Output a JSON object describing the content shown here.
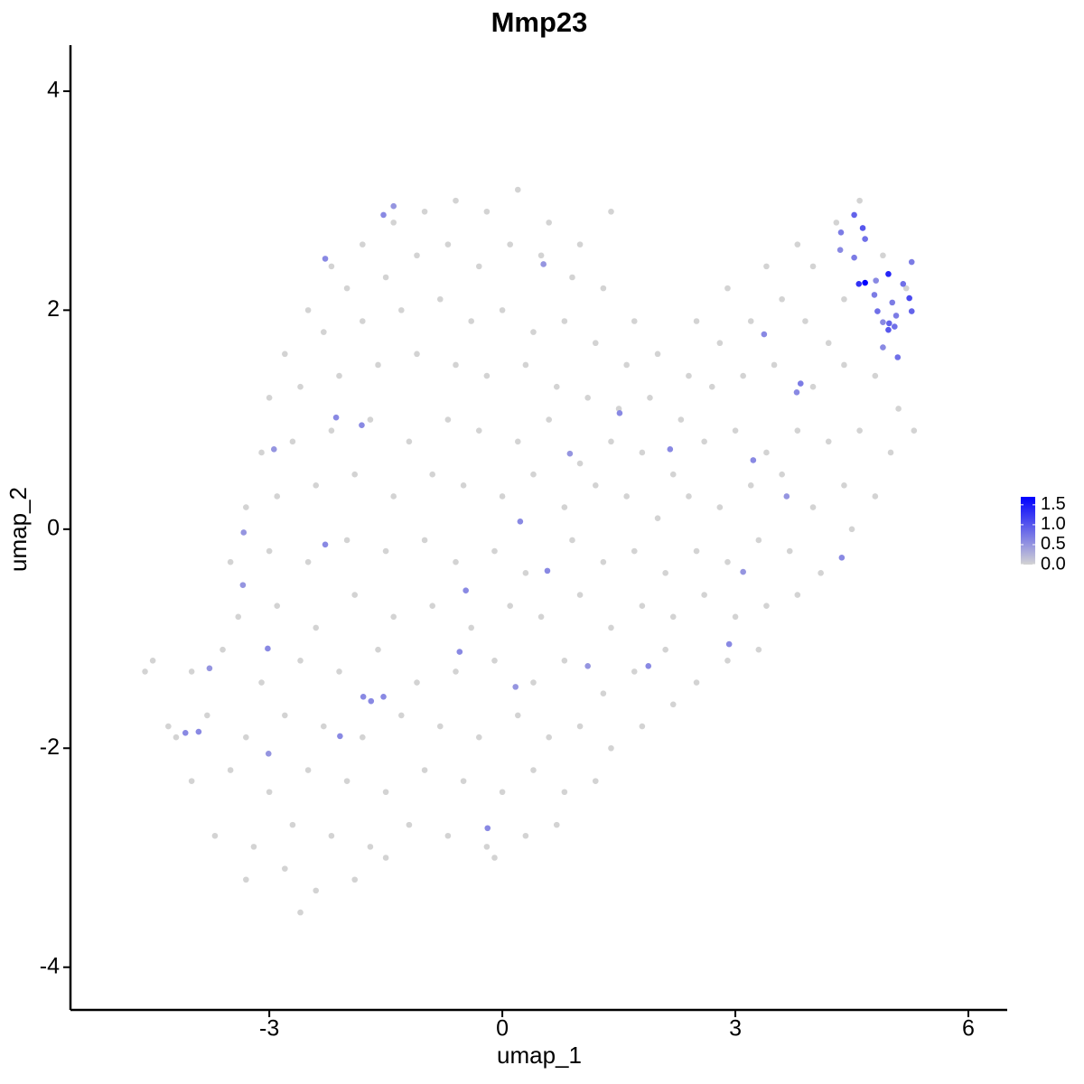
{
  "chart_data": {
    "type": "scatter",
    "title": "Mmp23",
    "x_label": "umap_1",
    "y_label": "umap_2",
    "xlim": [
      -5.56,
      6.5
    ],
    "ylim": [
      -4.39,
      4.42
    ],
    "xticks": [
      -3,
      0,
      3,
      6
    ],
    "yticks": [
      -4,
      -2,
      0,
      2,
      4
    ],
    "grid": false,
    "x": [
      -2.2,
      -1.8,
      -1.4,
      -1.0,
      -0.6,
      -0.2,
      0.2,
      0.6,
      1.0,
      1.4,
      -2.5,
      -2.0,
      -1.5,
      -1.1,
      -0.7,
      -0.3,
      0.1,
      0.5,
      0.9,
      1.3,
      1.7,
      -2.8,
      -2.3,
      -1.8,
      -1.3,
      -0.8,
      -0.4,
      0.0,
      0.4,
      0.8,
      1.2,
      1.6,
      2.0,
      2.4,
      2.8,
      3.2,
      3.6,
      4.0,
      4.3,
      4.6,
      3.8,
      3.4,
      2.9,
      2.5,
      4.4,
      4.9,
      5.2,
      4.2,
      3.9,
      -3.0,
      -2.6,
      -2.1,
      -1.6,
      -1.1,
      -0.6,
      -0.2,
      0.3,
      0.7,
      1.1,
      1.5,
      1.9,
      2.3,
      2.7,
      3.1,
      3.5,
      4.0,
      4.4,
      4.8,
      5.1,
      -3.1,
      -2.7,
      -2.2,
      -1.7,
      -1.2,
      -0.7,
      -0.3,
      0.2,
      0.6,
      1.0,
      1.4,
      1.8,
      2.2,
      2.6,
      3.0,
      3.4,
      3.8,
      4.2,
      4.6,
      5.0,
      5.3,
      -3.3,
      -2.9,
      -2.4,
      -1.9,
      -1.4,
      -0.9,
      -0.5,
      0.0,
      0.4,
      0.8,
      1.2,
      1.6,
      2.0,
      2.4,
      2.8,
      3.2,
      3.6,
      4.0,
      4.4,
      4.8,
      -3.5,
      -3.0,
      -2.5,
      -2.0,
      -1.5,
      -1.0,
      -0.6,
      -0.1,
      0.3,
      0.9,
      1.3,
      1.7,
      2.1,
      2.5,
      2.9,
      3.3,
      3.7,
      4.1,
      4.5,
      -3.4,
      -2.9,
      -2.4,
      -1.9,
      -1.4,
      -0.9,
      -0.4,
      0.1,
      0.5,
      1.0,
      1.4,
      1.8,
      2.2,
      2.6,
      3.0,
      3.4,
      3.8,
      -4.5,
      -4.0,
      -3.6,
      -3.1,
      -2.6,
      -2.1,
      -1.6,
      -1.1,
      -0.6,
      -0.1,
      0.4,
      0.8,
      1.3,
      1.7,
      2.1,
      2.5,
      2.9,
      3.3,
      -4.3,
      -3.8,
      -3.3,
      -2.8,
      -2.3,
      -1.8,
      -1.3,
      -0.8,
      -0.3,
      0.2,
      0.6,
      1.0,
      1.4,
      1.8,
      2.2,
      -4.0,
      -3.5,
      -3.0,
      -2.5,
      -2.0,
      -1.5,
      -1.0,
      -0.5,
      0.0,
      0.4,
      0.8,
      1.2,
      -3.7,
      -3.2,
      -2.7,
      -2.2,
      -1.7,
      -1.2,
      -0.7,
      -0.2,
      0.3,
      0.7,
      -3.3,
      -2.8,
      -2.4,
      -1.9,
      -1.5,
      -0.1,
      -2.6,
      -4.6,
      -4.2,
      4.53,
      4.64,
      4.36,
      4.67,
      4.35,
      4.53,
      4.67,
      4.59,
      4.81,
      4.97,
      5.16,
      5.24,
      5.27,
      4.79,
      4.83,
      4.98,
      5.07,
      4.97,
      5.05,
      4.9,
      5.09,
      4.9,
      5.02,
      5.27,
      -1.53,
      -1.4,
      -2.28,
      0.53,
      -2.14,
      -1.81,
      -2.94,
      1.51,
      0.87,
      2.16,
      3.37,
      3.84,
      3.79,
      3.23,
      3.66,
      4.37,
      0.23,
      -3.33,
      -2.28,
      -3.34,
      0.58,
      -0.47,
      3.1,
      -3.02,
      -0.55,
      1.1,
      1.88,
      2.92,
      -3.77,
      -1.79,
      -1.69,
      -1.53,
      0.17,
      -4.08,
      -3.91,
      -2.09,
      -3.01,
      -0.19
    ],
    "values": [
      2.4,
      2.6,
      2.8,
      2.9,
      3.0,
      2.9,
      3.1,
      2.8,
      2.6,
      2.9,
      2.0,
      2.2,
      2.3,
      2.5,
      2.6,
      2.4,
      2.6,
      2.5,
      2.3,
      2.2,
      1.9,
      1.6,
      1.8,
      1.9,
      2.0,
      2.1,
      1.9,
      2.0,
      1.8,
      1.9,
      1.7,
      1.5,
      1.6,
      1.4,
      1.7,
      1.9,
      2.1,
      2.4,
      2.8,
      3.0,
      2.6,
      2.4,
      2.2,
      1.9,
      2.1,
      2.5,
      2.2,
      1.7,
      1.9,
      1.2,
      1.3,
      1.4,
      1.5,
      1.6,
      1.5,
      1.4,
      1.5,
      1.3,
      1.2,
      1.1,
      1.2,
      1.0,
      1.3,
      1.4,
      1.5,
      1.3,
      1.5,
      1.4,
      1.1,
      0.7,
      0.8,
      0.9,
      1.0,
      0.8,
      1.0,
      0.9,
      0.8,
      1.0,
      0.6,
      0.8,
      0.7,
      0.5,
      0.8,
      0.9,
      0.7,
      0.9,
      0.8,
      0.9,
      0.7,
      0.9,
      0.2,
      0.3,
      0.4,
      0.5,
      0.3,
      0.5,
      0.4,
      0.3,
      0.5,
      0.2,
      0.4,
      0.3,
      0.1,
      0.3,
      0.2,
      0.4,
      0.5,
      0.2,
      0.4,
      0.3,
      -0.3,
      -0.2,
      -0.3,
      -0.1,
      -0.2,
      -0.1,
      -0.3,
      -0.2,
      -0.4,
      -0.1,
      -0.3,
      -0.2,
      -0.4,
      -0.2,
      -0.3,
      -0.1,
      -0.2,
      -0.4,
      0.0,
      -0.8,
      -0.7,
      -0.9,
      -0.6,
      -0.8,
      -0.7,
      -0.9,
      -0.7,
      -0.8,
      -0.6,
      -0.9,
      -0.7,
      -0.8,
      -0.6,
      -0.8,
      -0.7,
      -0.6,
      -1.2,
      -1.3,
      -1.1,
      -1.4,
      -1.2,
      -1.3,
      -1.1,
      -1.4,
      -1.3,
      -1.2,
      -1.4,
      -1.2,
      -1.5,
      -1.3,
      -1.1,
      -1.4,
      -1.2,
      -1.1,
      -1.8,
      -1.7,
      -1.9,
      -1.7,
      -1.8,
      -1.9,
      -1.7,
      -1.8,
      -1.9,
      -1.7,
      -1.9,
      -1.8,
      -2.0,
      -1.8,
      -1.6,
      -2.3,
      -2.2,
      -2.4,
      -2.2,
      -2.3,
      -2.4,
      -2.2,
      -2.3,
      -2.4,
      -2.2,
      -2.4,
      -2.3,
      -2.8,
      -2.9,
      -2.7,
      -2.8,
      -2.9,
      -2.7,
      -2.8,
      -2.9,
      -2.8,
      -2.7,
      -3.2,
      -3.1,
      -3.3,
      -3.2,
      -3.0,
      -3.0,
      -3.5,
      -1.3,
      -1.9,
      2.87,
      2.75,
      2.71,
      2.65,
      2.55,
      2.48,
      2.25,
      2.24,
      2.27,
      2.33,
      2.24,
      2.11,
      1.99,
      2.14,
      1.99,
      1.88,
      1.95,
      1.82,
      1.85,
      1.89,
      1.57,
      1.66,
      2.07,
      2.44,
      2.87,
      2.95,
      2.47,
      2.42,
      1.02,
      0.95,
      0.73,
      1.06,
      0.69,
      0.73,
      1.78,
      1.33,
      1.25,
      0.63,
      0.3,
      -0.26,
      0.07,
      -0.03,
      -0.14,
      -0.51,
      -0.38,
      -0.56,
      -0.39,
      -1.09,
      -1.12,
      -1.25,
      -1.25,
      -1.05,
      -1.27,
      -1.53,
      -1.57,
      -1.53,
      -1.44,
      -1.86,
      -1.85,
      -1.89,
      -2.05,
      -2.73
    ],
    "expression": [
      0,
      0,
      0,
      0,
      0,
      0,
      0,
      0,
      0,
      0,
      0,
      0,
      0,
      0,
      0,
      0,
      0,
      0,
      0,
      0,
      0,
      0,
      0,
      0,
      0,
      0,
      0,
      0,
      0,
      0,
      0,
      0,
      0,
      0,
      0,
      0,
      0,
      0,
      0,
      0,
      0,
      0,
      0,
      0,
      0,
      0,
      0,
      0,
      0,
      0,
      0,
      0,
      0,
      0,
      0,
      0,
      0,
      0,
      0,
      0,
      0,
      0,
      0,
      0,
      0,
      0,
      0,
      0,
      0,
      0,
      0,
      0,
      0,
      0,
      0,
      0,
      0,
      0,
      0,
      0,
      0,
      0,
      0,
      0,
      0,
      0,
      0,
      0,
      0,
      0,
      0,
      0,
      0,
      0,
      0,
      0,
      0,
      0,
      0,
      0,
      0,
      0,
      0,
      0,
      0,
      0,
      0,
      0,
      0,
      0,
      0,
      0,
      0,
      0,
      0,
      0,
      0,
      0,
      0,
      0,
      0,
      0,
      0,
      0,
      0,
      0,
      0,
      0,
      0,
      0,
      0,
      0,
      0,
      0,
      0,
      0,
      0,
      0,
      0,
      0,
      0,
      0,
      0,
      0,
      0,
      0,
      0,
      0,
      0,
      0,
      0,
      0,
      0,
      0,
      0,
      0,
      0,
      0,
      0,
      0,
      0,
      0,
      0,
      0,
      0,
      0,
      0,
      0,
      0,
      0,
      0,
      0,
      0,
      0,
      0,
      0,
      0,
      0,
      0,
      0,
      0,
      0,
      0,
      0,
      0,
      0,
      0,
      0,
      0,
      0,
      0,
      0,
      0,
      0,
      0,
      0,
      0,
      0,
      0,
      0,
      0,
      0,
      0,
      0,
      0,
      0,
      0,
      0,
      0,
      0,
      0.9,
      1.0,
      0.7,
      0.8,
      0.6,
      0.7,
      1.7,
      1.3,
      0.6,
      1.4,
      0.8,
      1.1,
      0.9,
      0.7,
      0.8,
      0.9,
      0.7,
      1.0,
      0.8,
      0.6,
      0.8,
      0.6,
      0.7,
      0.7,
      0.6,
      0.5,
      0.6,
      0.5,
      0.6,
      0.6,
      0.5,
      0.6,
      0.5,
      0.6,
      0.6,
      0.7,
      0.6,
      0.6,
      0.5,
      0.6,
      0.6,
      0.5,
      0.6,
      0.5,
      0.6,
      0.6,
      0.5,
      0.6,
      0.6,
      0.5,
      0.6,
      0.6,
      0.5,
      0.6,
      0.6,
      0.6,
      0.5,
      0.6,
      0.6,
      0.6,
      0.5,
      0.6
    ],
    "colorbar": {
      "lim": [
        0,
        1.7
      ],
      "low": "#d3d3d3",
      "high": "#0000ff",
      "position": "right",
      "ticks": [
        {
          "value": 0,
          "label": "0.0"
        },
        {
          "value": 0.5,
          "label": "0.5"
        },
        {
          "value": 1,
          "label": "1.0"
        },
        {
          "value": 1.5,
          "label": "1.5"
        }
      ]
    }
  }
}
